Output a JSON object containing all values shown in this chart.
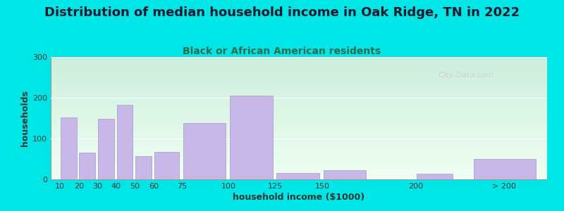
{
  "title": "Distribution of median household income in Oak Ridge, TN in 2022",
  "subtitle": "Black or African American residents",
  "xlabel": "household income ($1000)",
  "ylabel": "households",
  "bar_color": "#c8b8e8",
  "bar_edgecolor": "#b0a0d0",
  "outer_bg": "#00e5e5",
  "grad_top": "#cceedd",
  "grad_bottom": "#f0fff4",
  "categories": [
    "10",
    "20",
    "30",
    "40",
    "50",
    "60",
    "75",
    "100",
    "125",
    "150",
    "200",
    "> 200"
  ],
  "values": [
    152,
    65,
    148,
    182,
    57,
    68,
    138,
    205,
    15,
    22,
    13,
    50
  ],
  "left_edges": [
    10,
    20,
    30,
    40,
    50,
    60,
    75,
    100,
    125,
    150,
    200,
    230
  ],
  "bar_widths": [
    9,
    9,
    9,
    9,
    9,
    14,
    24,
    24,
    24,
    24,
    20,
    35
  ],
  "xtick_positions": [
    10,
    20,
    30,
    40,
    50,
    60,
    75,
    100,
    125,
    150,
    200,
    247
  ],
  "ylim": [
    0,
    300
  ],
  "yticks": [
    0,
    100,
    200,
    300
  ],
  "watermark": "City-Data.com",
  "title_fontsize": 13,
  "subtitle_fontsize": 10,
  "axis_label_fontsize": 9
}
